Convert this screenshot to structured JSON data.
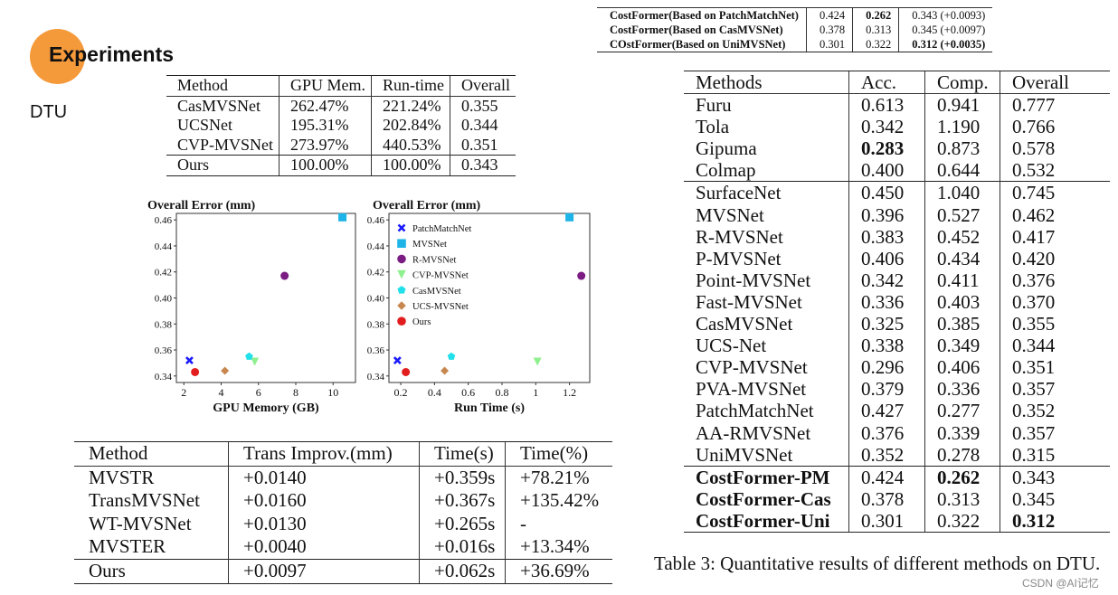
{
  "section": {
    "title": "Experiments",
    "subtitle": "DTU"
  },
  "colors": {
    "accent_circle": "#f59a3b"
  },
  "cost_table": {
    "headers": [
      "Method",
      "GPU Mem.",
      "Run-time",
      "Overall"
    ],
    "rows": [
      [
        "CasMVSNet",
        "262.47%",
        "221.24%",
        "0.355"
      ],
      [
        "UCSNet",
        "195.31%",
        "202.84%",
        "0.344"
      ],
      [
        "CVP-MVSNet",
        "273.97%",
        "440.53%",
        "0.351"
      ]
    ],
    "ours": [
      "Ours",
      "100.00%",
      "100.00%",
      "0.343"
    ]
  },
  "trans_table": {
    "headers": [
      "Method",
      "Trans Improv.(mm)",
      "Time(s)",
      "Time(%)"
    ],
    "rows": [
      [
        "MVSTR",
        "+0.0140",
        "+0.359s",
        "+78.21%"
      ],
      [
        "TransMVSNet",
        "+0.0160",
        "+0.367s",
        "+135.42%"
      ],
      [
        "WT-MVSNet",
        "+0.0130",
        "+0.265s",
        "-"
      ],
      [
        "MVSTER",
        "+0.0040",
        "+0.016s",
        "+13.34%"
      ]
    ],
    "ours": [
      "Ours",
      "+0.0097",
      "+0.062s",
      "+36.69%"
    ]
  },
  "top_table": {
    "rows": [
      [
        "CostFormer(Based on PatchMatchNet)",
        "0.424",
        "0.262",
        "0.343 (+0.0093)"
      ],
      [
        "CostFormer(Based on CasMVSNet)",
        "0.378",
        "0.313",
        "0.345 (+0.0097)"
      ],
      [
        "COstFormer(Based on UniMVSNet)",
        "0.301",
        "0.322",
        "0.312 (+0.0035)"
      ]
    ]
  },
  "dtu_table": {
    "headers": [
      "Methods",
      "Acc.",
      "Comp.",
      "Overall"
    ],
    "group1": [
      [
        "Furu",
        "0.613",
        "0.941",
        "0.777"
      ],
      [
        "Tola",
        "0.342",
        "1.190",
        "0.766"
      ],
      [
        "Gipuma",
        "0.283",
        "0.873",
        "0.578"
      ],
      [
        "Colmap",
        "0.400",
        "0.644",
        "0.532"
      ]
    ],
    "group2": [
      [
        "SurfaceNet",
        "0.450",
        "1.040",
        "0.745"
      ],
      [
        "MVSNet",
        "0.396",
        "0.527",
        "0.462"
      ],
      [
        "R-MVSNet",
        "0.383",
        "0.452",
        "0.417"
      ],
      [
        "P-MVSNet",
        "0.406",
        "0.434",
        "0.420"
      ],
      [
        "Point-MVSNet",
        "0.342",
        "0.411",
        "0.376"
      ],
      [
        "Fast-MVSNet",
        "0.336",
        "0.403",
        "0.370"
      ],
      [
        "CasMVSNet",
        "0.325",
        "0.385",
        "0.355"
      ],
      [
        "UCS-Net",
        "0.338",
        "0.349",
        "0.344"
      ],
      [
        "CVP-MVSNet",
        "0.296",
        "0.406",
        "0.351"
      ],
      [
        "PVA-MVSNet",
        "0.379",
        "0.336",
        "0.357"
      ],
      [
        "PatchMatchNet",
        "0.427",
        "0.277",
        "0.352"
      ],
      [
        "AA-RMVSNet",
        "0.376",
        "0.339",
        "0.357"
      ],
      [
        "UniMVSNet",
        "0.352",
        "0.278",
        "0.315"
      ]
    ],
    "group3": [
      [
        "CostFormer-PM",
        "0.424",
        "0.262",
        "0.343"
      ],
      [
        "CostFormer-Cas",
        "0.378",
        "0.313",
        "0.345"
      ],
      [
        "CostFormer-Uni",
        "0.301",
        "0.322",
        "0.312"
      ]
    ],
    "caption": "Table 3: Quantitative results of different methods on DTU."
  },
  "chart_data": [
    {
      "type": "scatter",
      "title": "Overall Error (mm)",
      "xlabel": "GPU Memory (GB)",
      "ylabel": "",
      "xlim": [
        1.6,
        11.2
      ],
      "ylim": [
        0.335,
        0.465
      ],
      "xticks": [
        2,
        4,
        6,
        8,
        10
      ],
      "yticks": [
        0.34,
        0.36,
        0.38,
        0.4,
        0.42,
        0.44,
        0.46
      ],
      "points": [
        {
          "name": "PatchMatchNet",
          "x": 2.3,
          "y": 0.352,
          "color": "#1a1aff",
          "marker": "x"
        },
        {
          "name": "MVSNet",
          "x": 10.5,
          "y": 0.462,
          "color": "#1eb4e8",
          "marker": "square"
        },
        {
          "name": "R-MVSNet",
          "x": 7.4,
          "y": 0.417,
          "color": "#7b1c82",
          "marker": "circle"
        },
        {
          "name": "CVP-MVSNet",
          "x": 5.8,
          "y": 0.351,
          "color": "#8ff08f",
          "marker": "triangle"
        },
        {
          "name": "CasMVSNet",
          "x": 5.5,
          "y": 0.355,
          "color": "#22e0ea",
          "marker": "pentagon"
        },
        {
          "name": "UCS-MVSNet",
          "x": 4.2,
          "y": 0.344,
          "color": "#c7874f",
          "marker": "diamond"
        },
        {
          "name": "Ours",
          "x": 2.6,
          "y": 0.343,
          "color": "#e21d1d",
          "marker": "circle"
        }
      ]
    },
    {
      "type": "scatter",
      "title": "Overall Error (mm)",
      "xlabel": "Run Time (s)",
      "ylabel": "",
      "xlim": [
        0.13,
        1.32
      ],
      "ylim": [
        0.335,
        0.465
      ],
      "xticks": [
        0.2,
        0.4,
        0.6,
        0.8,
        1.0,
        1.2
      ],
      "yticks": [
        0.34,
        0.36,
        0.38,
        0.4,
        0.42,
        0.44,
        0.46
      ],
      "legend": "top-left",
      "points": [
        {
          "name": "PatchMatchNet",
          "x": 0.18,
          "y": 0.352,
          "color": "#1a1aff",
          "marker": "x"
        },
        {
          "name": "MVSNet",
          "x": 1.2,
          "y": 0.462,
          "color": "#1eb4e8",
          "marker": "square"
        },
        {
          "name": "R-MVSNet",
          "x": 1.27,
          "y": 0.417,
          "color": "#7b1c82",
          "marker": "circle"
        },
        {
          "name": "CVP-MVSNet",
          "x": 1.01,
          "y": 0.351,
          "color": "#8ff08f",
          "marker": "triangle"
        },
        {
          "name": "CasMVSNet",
          "x": 0.5,
          "y": 0.355,
          "color": "#22e0ea",
          "marker": "pentagon"
        },
        {
          "name": "UCS-MVSNet",
          "x": 0.46,
          "y": 0.344,
          "color": "#c7874f",
          "marker": "diamond"
        },
        {
          "name": "Ours",
          "x": 0.23,
          "y": 0.343,
          "color": "#e21d1d",
          "marker": "circle"
        }
      ]
    }
  ],
  "watermark": "CSDN @AI记忆"
}
